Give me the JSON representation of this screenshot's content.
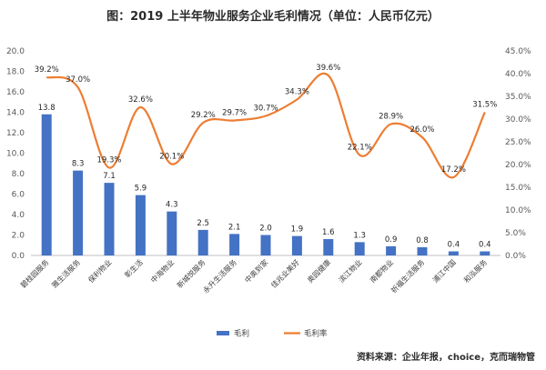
{
  "chart_data": {
    "type": "bar",
    "title": "图：2019 上半年物业服务企业毛利情况（单位：人民币亿元）",
    "categories": [
      "碧桂园服务",
      "雅生活服务",
      "保利物业",
      "彰生活",
      "中海物业",
      "新城悦服务",
      "永升生活服务",
      "中奥到家",
      "佳兆业美好",
      "奥园健康",
      "滨江物业",
      "南都物业",
      "祈福生活服务",
      "浦江中国",
      "和泓服务"
    ],
    "series": [
      {
        "name": "毛利",
        "axis": "left",
        "color": "#4472C4",
        "values": [
          13.8,
          8.3,
          7.1,
          5.9,
          4.3,
          2.5,
          2.1,
          2.0,
          1.9,
          1.6,
          1.3,
          0.9,
          0.8,
          0.4,
          0.4
        ],
        "labels": [
          "13.8",
          "8.3",
          "7.1",
          "5.9",
          "4.3",
          "2.5",
          "2.1",
          "2.0",
          "1.9",
          "1.6",
          "1.3",
          "0.9",
          "0.8",
          "0.4",
          "0.4"
        ]
      },
      {
        "name": "毛利率",
        "axis": "right",
        "type": "line",
        "color": "#ED7D31",
        "values": [
          39.2,
          37.0,
          19.3,
          32.6,
          20.1,
          29.2,
          29.7,
          30.7,
          34.3,
          39.6,
          22.1,
          28.9,
          26.0,
          17.2,
          31.5
        ],
        "labels": [
          "39.2%",
          "37.0%",
          "19.3%",
          "32.6%",
          "20.1%",
          "29.2%",
          "29.7%",
          "30.7%",
          "34.3%",
          "39.6%",
          "22.1%",
          "28.9%",
          "26.0%",
          "17.2%",
          "31.5%"
        ]
      }
    ],
    "yaxis_left": {
      "min": 0,
      "max": 20,
      "step": 2,
      "ticks": [
        "0.0",
        "2.0",
        "4.0",
        "6.0",
        "8.0",
        "10.0",
        "12.0",
        "14.0",
        "16.0",
        "18.0",
        "20.0"
      ]
    },
    "yaxis_right": {
      "min": 0,
      "max": 45,
      "step": 5,
      "ticks": [
        "0.0%",
        "5.0%",
        "10.0%",
        "15.0%",
        "20.0%",
        "25.0%",
        "30.0%",
        "35.0%",
        "40.0%",
        "45.0%"
      ]
    },
    "grid": false,
    "legend_position": "bottom",
    "source": "资料来源：企业年报，choice，克而瑞物管"
  }
}
